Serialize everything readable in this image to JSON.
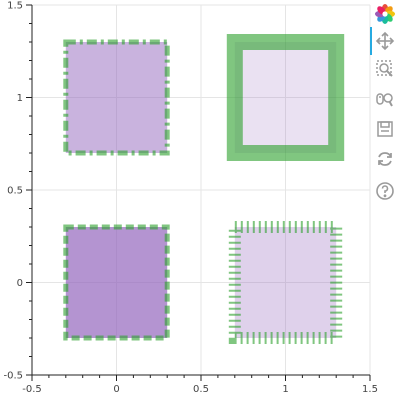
{
  "chart_data": {
    "type": "scatter",
    "title": "",
    "xlabel": "",
    "ylabel": "",
    "xlim": [
      -0.5,
      1.5
    ],
    "ylim": [
      -0.5,
      1.5
    ],
    "grid": true,
    "x_ticks": [
      {
        "value": -0.5,
        "label": "-0.5"
      },
      {
        "value": 0,
        "label": "0"
      },
      {
        "value": 0.5,
        "label": "0.5"
      },
      {
        "value": 1,
        "label": "1"
      },
      {
        "value": 1.5,
        "label": "1.5"
      }
    ],
    "y_ticks": [
      {
        "value": -0.5,
        "label": "-0.5"
      },
      {
        "value": 0,
        "label": "0"
      },
      {
        "value": 0.5,
        "label": "0.5"
      },
      {
        "value": 1,
        "label": "1"
      },
      {
        "value": 1.5,
        "label": "1.5"
      }
    ],
    "series": [
      {
        "points": [
          {
            "x": 0,
            "y": 1,
            "size": 0.6,
            "fill": "#9467bd",
            "fill_alpha": 0.5,
            "line": "#2ca02c",
            "line_alpha": 0.6,
            "dash": "dashdot"
          },
          {
            "x": 1,
            "y": 1,
            "size": 0.6,
            "fill": "#9467bd",
            "fill_alpha": 0.2,
            "line": "#2ca02c",
            "line_alpha": 0.6,
            "dash": "solid-thick"
          },
          {
            "x": 0,
            "y": 0,
            "size": 0.6,
            "fill": "#9467bd",
            "fill_alpha": 0.7,
            "line": "#2ca02c",
            "line_alpha": 0.6,
            "dash": "dashed"
          },
          {
            "x": 1,
            "y": 0,
            "size": 0.6,
            "fill": "#9467bd",
            "fill_alpha": 0.3,
            "line": "#2ca02c",
            "line_alpha": 0.6,
            "dash": "dotted-thick"
          }
        ]
      }
    ]
  },
  "toolbar": {
    "items": [
      {
        "name": "bokeh-logo-icon",
        "active": false,
        "interactable": false
      },
      {
        "name": "pan-icon",
        "active": true,
        "interactable": true
      },
      {
        "name": "box-zoom-icon",
        "active": false,
        "interactable": true
      },
      {
        "name": "wheel-zoom-icon",
        "active": false,
        "interactable": true
      },
      {
        "name": "save-icon",
        "active": false,
        "interactable": true
      },
      {
        "name": "reset-icon",
        "active": false,
        "interactable": true
      },
      {
        "name": "help-icon",
        "active": false,
        "interactable": true
      }
    ]
  }
}
